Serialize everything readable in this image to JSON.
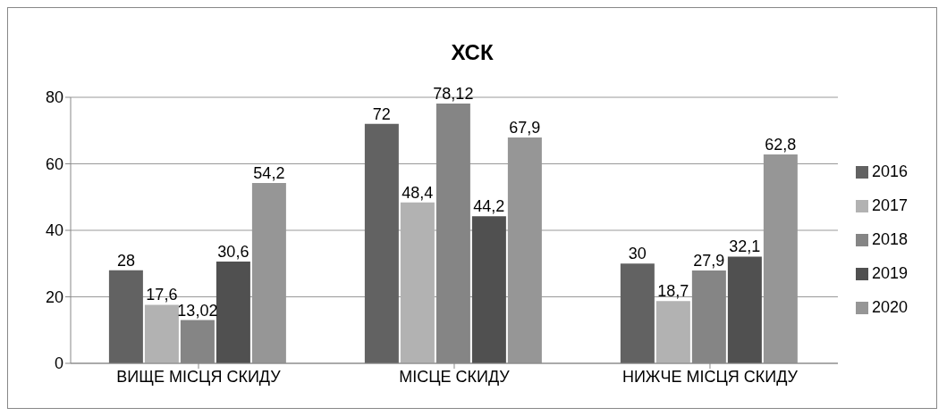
{
  "chart_data": {
    "type": "bar",
    "title": "ХСК",
    "categories": [
      "ВИЩЕ МІСЦЯ СКИДУ",
      "МІСЦЕ СКИДУ",
      "НИЖЧЕ МІСЦЯ СКИДУ"
    ],
    "series": [
      {
        "name": "2016",
        "color": "#626262",
        "values": [
          28,
          72,
          30
        ],
        "value_labels": [
          "28",
          "72",
          "30"
        ]
      },
      {
        "name": "2017",
        "color": "#b2b2b2",
        "values": [
          17.6,
          48.4,
          18.7
        ],
        "value_labels": [
          "17,6",
          "48,4",
          "18,7"
        ]
      },
      {
        "name": "2018",
        "color": "#858585",
        "values": [
          13.02,
          78.12,
          27.9
        ],
        "value_labels": [
          "13,02",
          "78,12",
          "27,9"
        ]
      },
      {
        "name": "2019",
        "color": "#505050",
        "values": [
          30.6,
          44.2,
          32.1
        ],
        "value_labels": [
          "30,6",
          "44,2",
          "32,1"
        ]
      },
      {
        "name": "2020",
        "color": "#969696",
        "values": [
          54.2,
          67.9,
          62.8
        ],
        "value_labels": [
          "54,2",
          "67,9",
          "62,8"
        ]
      }
    ],
    "ylim": [
      0,
      80
    ],
    "yticks": [
      0,
      20,
      40,
      60,
      80
    ],
    "grid": "y",
    "legend": "right"
  }
}
